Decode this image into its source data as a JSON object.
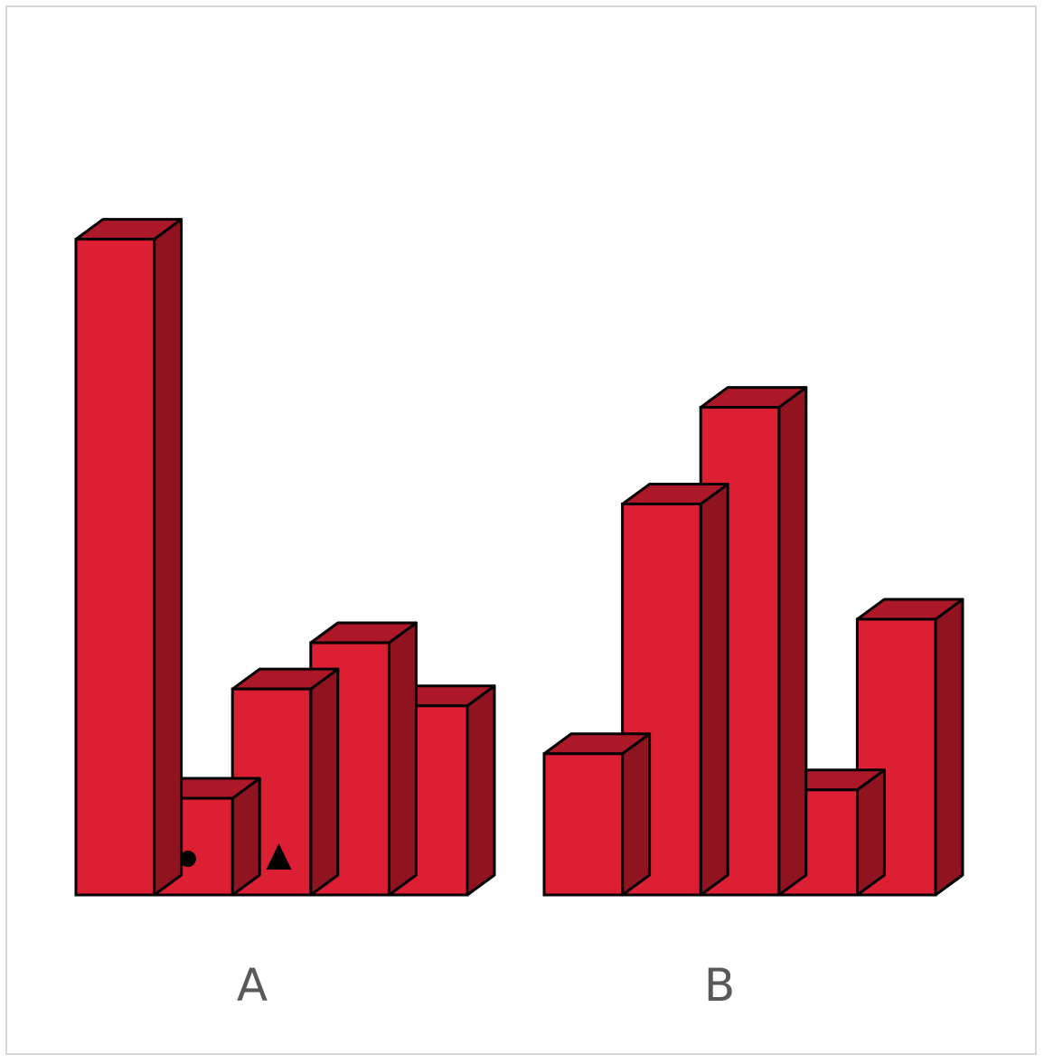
{
  "chart_data": [
    {
      "type": "bar",
      "label": "A",
      "values": [
        7.8,
        1.15,
        2.45,
        3.0,
        2.25
      ],
      "markers": [
        "",
        "circle",
        "triangle",
        "",
        ""
      ]
    },
    {
      "type": "bar",
      "label": "B",
      "values": [
        1.68,
        4.65,
        5.8,
        1.25,
        3.28
      ],
      "markers": [
        "",
        "",
        "",
        "",
        ""
      ]
    }
  ],
  "colors": {
    "front": "#dc1f32",
    "top": "#ad1829",
    "side": "#8f1420",
    "outline": "#000000",
    "label": "#595959"
  }
}
